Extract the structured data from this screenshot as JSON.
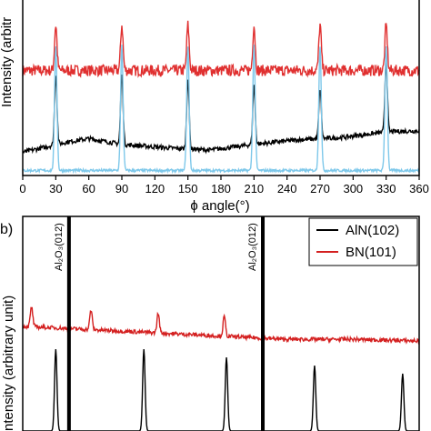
{
  "chart_data": [
    {
      "type": "line",
      "panel_label": "",
      "xlabel": "ϕ angle(°)",
      "ylabel": "Intensity (arbitrary unit)",
      "ylabel_visible": "Intensity (arbitr",
      "xlim": [
        0,
        360
      ],
      "x_ticks": [
        0,
        30,
        60,
        90,
        120,
        150,
        180,
        210,
        240,
        270,
        300,
        330,
        360
      ],
      "legend": "none",
      "grid": false,
      "series": [
        {
          "color": "#e03030",
          "baseline": 0.9,
          "noise": 0.05,
          "peaks": [
            {
              "x": 30,
              "height": 0.4
            },
            {
              "x": 90,
              "height": 0.4
            },
            {
              "x": 150,
              "height": 0.4
            },
            {
              "x": 210,
              "height": 0.4
            },
            {
              "x": 270,
              "height": 0.4
            },
            {
              "x": 330,
              "height": 0.4
            }
          ]
        },
        {
          "color": "#000000",
          "baseline_points": [
            [
              0,
              0.18
            ],
            [
              40,
              0.27
            ],
            [
              60,
              0.3
            ],
            [
              90,
              0.25
            ],
            [
              130,
              0.22
            ],
            [
              170,
              0.2
            ],
            [
              210,
              0.25
            ],
            [
              250,
              0.29
            ],
            [
              290,
              0.31
            ],
            [
              330,
              0.36
            ],
            [
              360,
              0.37
            ]
          ],
          "noise": 0.02,
          "peaks": [
            {
              "x": 30,
              "height": 0.62
            },
            {
              "x": 90,
              "height": 0.62
            },
            {
              "x": 150,
              "height": 0.62
            },
            {
              "x": 210,
              "height": 0.52
            },
            {
              "x": 270,
              "height": 0.44
            },
            {
              "x": 330,
              "height": 0.62
            }
          ]
        },
        {
          "color": "#7ec8ea",
          "baseline": 0.02,
          "noise": 0.012,
          "peaks": [
            {
              "x": 30,
              "height": 1.1
            },
            {
              "x": 90,
              "height": 1.1
            },
            {
              "x": 150,
              "height": 1.1
            },
            {
              "x": 210,
              "height": 1.1
            },
            {
              "x": 270,
              "height": 1.1
            },
            {
              "x": 330,
              "height": 1.1
            }
          ]
        }
      ]
    },
    {
      "type": "line",
      "panel_label": "b)",
      "ylabel_visible": "ntensity (arbitrary unit)",
      "xlim": [
        0,
        360
      ],
      "legend": "top-right",
      "grid": false,
      "series": [
        {
          "name": "AlN(102)",
          "color": "#000000",
          "baseline": 0.0,
          "noise": 0.0,
          "peaks": [
            {
              "x": 30,
              "height": 0.5
            },
            {
              "x": 110,
              "height": 0.5
            },
            {
              "x": 185,
              "height": 0.45
            },
            {
              "x": 265,
              "height": 0.4
            },
            {
              "x": 345,
              "height": 0.35
            }
          ]
        },
        {
          "name": "BN(101)",
          "color": "#d42020",
          "baseline_points": [
            [
              0,
              0.64
            ],
            [
              60,
              0.62
            ],
            [
              120,
              0.6
            ],
            [
              180,
              0.58
            ],
            [
              240,
              0.56
            ],
            [
              300,
              0.56
            ],
            [
              360,
              0.55
            ]
          ],
          "noise": 0.012,
          "peaks": [
            {
              "x": 8,
              "height": 0.12
            },
            {
              "x": 62,
              "height": 0.12
            },
            {
              "x": 123,
              "height": 0.12
            },
            {
              "x": 183,
              "height": 0.12
            }
          ]
        }
      ],
      "annotations": [
        {
          "text": "Al₂O₃(012)",
          "x": 42
        },
        {
          "text": "Al₂O₃(012)",
          "x": 218
        }
      ]
    }
  ]
}
